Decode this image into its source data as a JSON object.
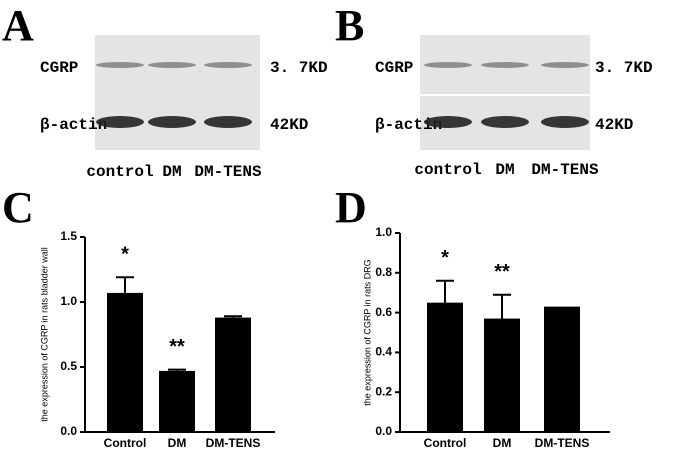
{
  "blots": [
    {
      "panel": "A",
      "rows": [
        {
          "name": "CGRP",
          "size": "3. 7KD"
        },
        {
          "name": "β-actin",
          "size": "42KD"
        }
      ],
      "lanes": [
        "control",
        "DM",
        "DM-TENS"
      ]
    },
    {
      "panel": "B",
      "rows": [
        {
          "name": "CGRP",
          "size": "3. 7KD"
        },
        {
          "name": "β-actin",
          "size": "42KD"
        }
      ],
      "lanes": [
        "control",
        "DM",
        "DM-TENS"
      ]
    }
  ],
  "chart_data": [
    {
      "type": "bar",
      "panel": "C",
      "ylabel": "the expression of CGRP in rats bladder wall",
      "categories": [
        "Control",
        "DM",
        "DM-TENS"
      ],
      "values": [
        1.07,
        0.47,
        0.88
      ],
      "errors": [
        0.12,
        0.01,
        0.01
      ],
      "annotations": [
        "*",
        "**",
        null
      ],
      "color": "#000000",
      "ylim": [
        0,
        1.5
      ],
      "yticks": [
        {
          "value": 0,
          "label": "0.0"
        },
        0.5,
        {
          "value": 1,
          "label": "1.0"
        },
        1.5
      ]
    },
    {
      "type": "bar",
      "panel": "D",
      "ylabel": "the expression of CGRP in rats DRG",
      "categories": [
        "Control",
        "DM",
        "DM-TENS"
      ],
      "values": [
        0.65,
        0.57,
        0.63
      ],
      "errors": [
        0.11,
        0.12,
        null
      ],
      "annotations": [
        "*",
        "**",
        null
      ],
      "color": "#000000",
      "ylim": [
        0,
        1
      ],
      "yticks": [
        {
          "value": 0,
          "label": "0.0"
        },
        0.2,
        0.4,
        0.6,
        0.8,
        {
          "value": 1,
          "label": "1.0"
        }
      ]
    }
  ]
}
